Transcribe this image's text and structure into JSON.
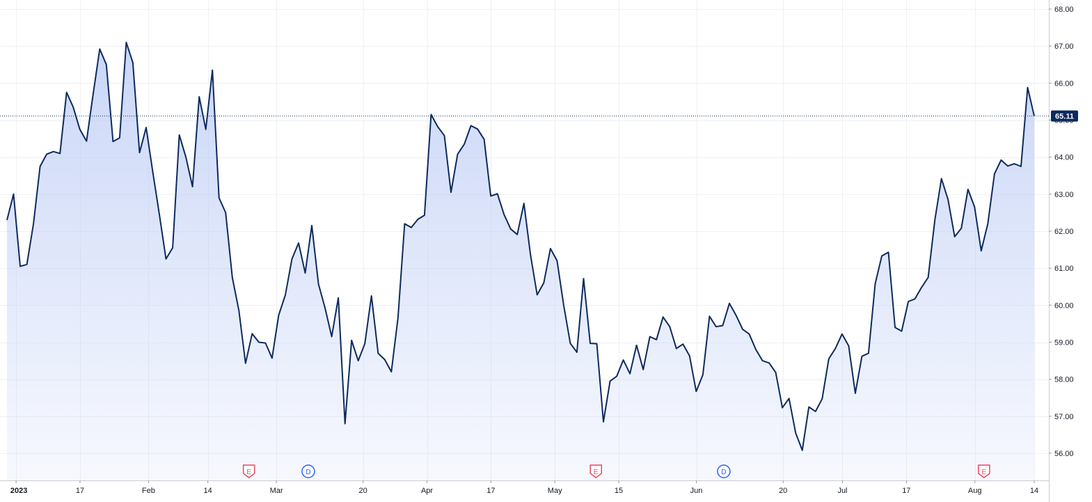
{
  "chart_data": {
    "type": "area",
    "title": "",
    "xlabel": "",
    "ylabel": "",
    "ylim": [
      55.3,
      68.2
    ],
    "y_ticks": [
      "56.00",
      "57.00",
      "58.00",
      "59.00",
      "60.00",
      "61.00",
      "62.00",
      "63.00",
      "64.00",
      "65.00",
      "66.00",
      "67.00",
      "68.00"
    ],
    "x_ticks": [
      {
        "label": "2023",
        "date": "2023-01-03"
      },
      {
        "label": "17",
        "date": "2023-01-17"
      },
      {
        "label": "Feb",
        "date": "2023-02-01"
      },
      {
        "label": "14",
        "date": "2023-02-14"
      },
      {
        "label": "Mar",
        "date": "2023-03-01"
      },
      {
        "label": "20",
        "date": "2023-03-20"
      },
      {
        "label": "Apr",
        "date": "2023-04-03"
      },
      {
        "label": "17",
        "date": "2023-04-17"
      },
      {
        "label": "May",
        "date": "2023-05-01"
      },
      {
        "label": "15",
        "date": "2023-05-15"
      },
      {
        "label": "Jun",
        "date": "2023-06-01"
      },
      {
        "label": "20",
        "date": "2023-06-20"
      },
      {
        "label": "Jul",
        "date": "2023-07-03"
      },
      {
        "label": "17",
        "date": "2023-07-17"
      },
      {
        "label": "Aug",
        "date": "2023-08-01"
      },
      {
        "label": "14",
        "date": "2023-08-14"
      }
    ],
    "last_price_label": "65.11",
    "last_price": 65.11,
    "grid": true,
    "line_color": "#0d2a5e",
    "fill_color": "#b9c9f5",
    "last_label_bg": "#0d2a5e",
    "event_markers": [
      {
        "type": "E",
        "date": "2023-02-23",
        "color": "#e84a5f"
      },
      {
        "type": "D",
        "date": "2023-03-08",
        "color": "#2962ff"
      },
      {
        "type": "E",
        "date": "2023-05-10",
        "color": "#e84a5f"
      },
      {
        "type": "D",
        "date": "2023-06-07",
        "color": "#2962ff"
      },
      {
        "type": "E",
        "date": "2023-08-03",
        "color": "#e84a5f"
      }
    ],
    "series": [
      {
        "values": [
          62.3,
          63.0,
          61.05,
          61.1,
          62.2,
          63.75,
          64.08,
          64.15,
          64.1,
          65.75,
          65.35,
          64.75,
          64.43,
          65.7,
          66.92,
          66.5,
          64.42,
          64.52,
          67.1,
          66.55,
          64.12,
          64.8,
          63.6,
          62.45,
          61.25,
          61.55,
          64.6,
          64.0,
          63.2,
          65.63,
          64.75,
          66.35,
          62.9,
          62.5,
          60.75,
          59.85,
          58.43,
          59.23,
          59.0,
          58.98,
          58.57,
          59.73,
          60.27,
          61.25,
          61.68,
          60.87,
          62.15,
          60.57,
          59.92,
          59.15,
          60.2,
          56.8,
          59.05,
          58.5,
          58.96,
          60.25,
          58.7,
          58.53,
          58.2,
          59.65,
          62.2,
          62.1,
          62.32,
          62.43,
          65.15,
          64.82,
          64.58,
          63.05,
          64.08,
          64.35,
          64.85,
          64.76,
          64.48,
          62.95,
          63.01,
          62.45,
          62.06,
          61.91,
          62.75,
          61.35,
          60.28,
          60.6,
          61.53,
          61.2,
          60.0,
          58.97,
          58.73,
          60.72,
          58.97,
          58.96,
          56.85,
          57.95,
          58.08,
          58.52,
          58.15,
          58.92,
          58.26,
          59.15,
          59.07,
          59.68,
          59.42,
          58.83,
          58.95,
          58.63,
          57.67,
          58.12,
          59.7,
          59.42,
          59.45,
          60.05,
          59.73,
          59.35,
          59.22,
          58.8,
          58.5,
          58.44,
          58.18,
          57.23,
          57.48,
          56.55,
          56.08,
          57.25,
          57.13,
          57.47,
          58.55,
          58.83,
          59.22,
          58.9,
          57.62,
          58.62,
          58.7,
          60.58,
          61.33,
          61.43,
          59.4,
          59.3,
          60.1,
          60.17,
          60.48,
          60.75,
          62.3,
          63.42,
          62.85,
          61.85,
          62.08,
          63.13,
          62.65,
          61.47,
          62.2,
          63.55,
          63.92,
          63.76,
          63.82,
          63.75,
          65.88,
          65.11
        ]
      }
    ]
  }
}
